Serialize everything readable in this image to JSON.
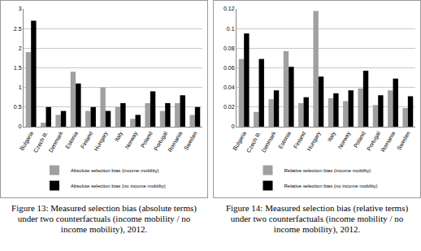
{
  "chart_data": [
    {
      "type": "bar",
      "title": "Figure 13: Measured selection bias (absolute terms) under two counterfactuals (income mobility / no income mobility), 2012.",
      "categories": [
        "Bulgaria",
        "Czech R.",
        "Denmark",
        "Estonia",
        "Finland",
        "Hungary",
        "Italy",
        "Norway",
        "Poland",
        "Portugal",
        "Romania",
        "Sweden"
      ],
      "series": [
        {
          "name": "Absolute selection bias (income mobility)",
          "color": "#a0a0a0",
          "values": [
            1.9,
            0.1,
            0.3,
            1.4,
            0.4,
            1.0,
            0.5,
            0.2,
            0.6,
            0.4,
            0.6,
            0.3
          ]
        },
        {
          "name": "Absolute selection bias (no income mobility)",
          "color": "#000000",
          "values": [
            2.7,
            0.5,
            0.4,
            1.1,
            0.5,
            0.4,
            0.6,
            0.3,
            0.9,
            0.6,
            0.8,
            0.5
          ]
        }
      ],
      "ylim": [
        0,
        3
      ],
      "yticks": [
        0,
        0.5,
        1,
        1.5,
        2,
        2.5,
        3
      ],
      "grid": true,
      "legend": "bottom"
    },
    {
      "type": "bar",
      "title": "Figure 14: Measured selection bias (relative terms) under two counterfactuals (income mobility / no income mobility), 2012.",
      "categories": [
        "Bulgaria",
        "Czech R.",
        "Denmark",
        "Estonia",
        "Finland",
        "Hungary",
        "Italy",
        "Norway",
        "Poland",
        "Portugal",
        "Romania",
        "Sweden"
      ],
      "series": [
        {
          "name": "Relative selection bias (income mobility)",
          "color": "#a0a0a0",
          "values": [
            0.069,
            0.015,
            0.028,
            0.077,
            0.024,
            0.118,
            0.029,
            0.026,
            0.039,
            0.022,
            0.037,
            0.019
          ]
        },
        {
          "name": "Relative selection bias (no income mobility)",
          "color": "#000000",
          "values": [
            0.095,
            0.069,
            0.037,
            0.061,
            0.03,
            0.051,
            0.034,
            0.037,
            0.057,
            0.032,
            0.049,
            0.031
          ]
        }
      ],
      "ylim": [
        0,
        0.12
      ],
      "yticks": [
        0,
        0.02,
        0.04,
        0.06,
        0.08,
        0.1,
        0.12
      ],
      "grid": true,
      "legend": "bottom"
    }
  ]
}
